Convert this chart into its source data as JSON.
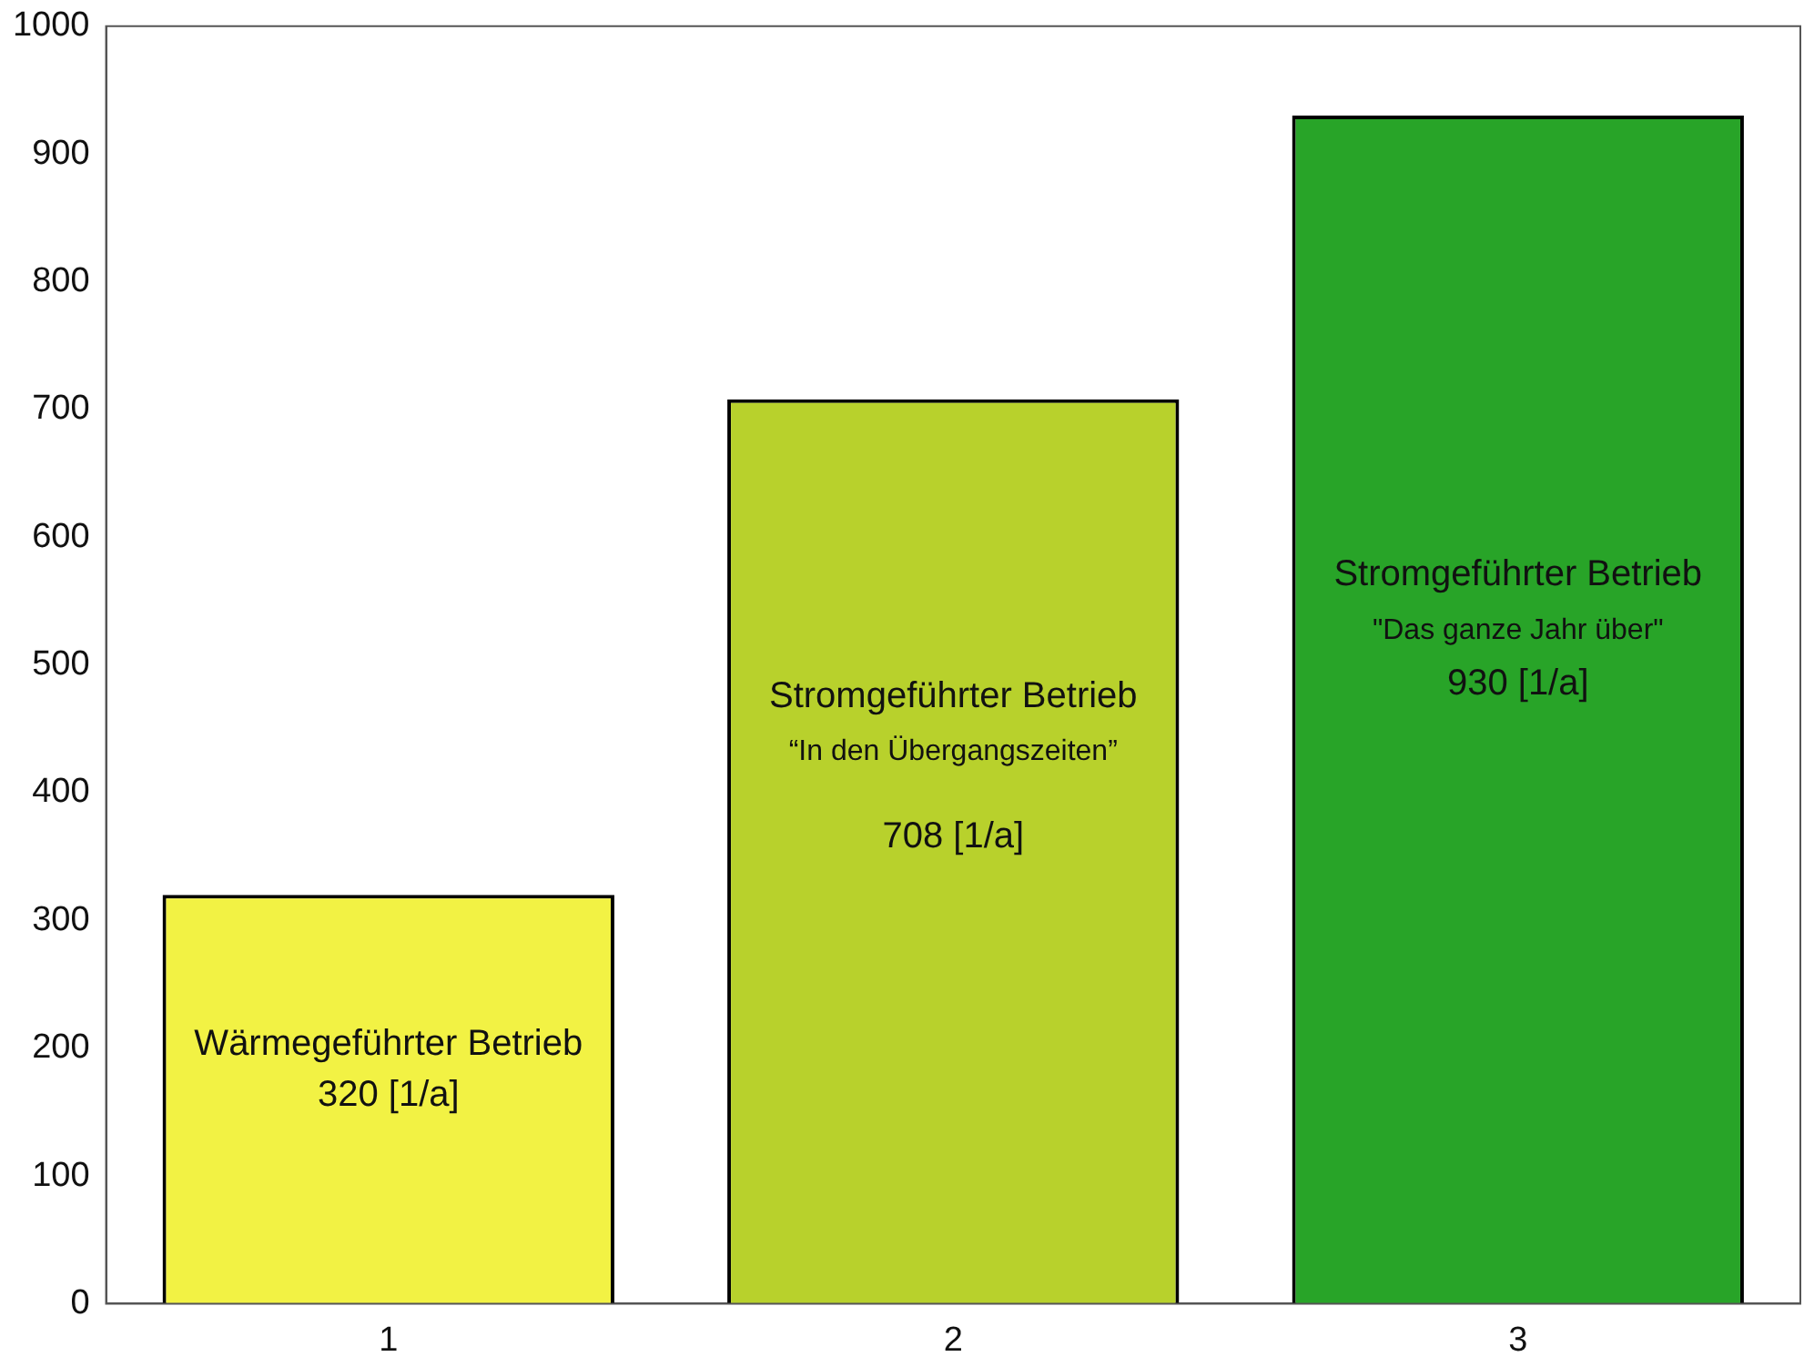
{
  "chart_data": {
    "type": "bar",
    "categories": [
      "1",
      "2",
      "3"
    ],
    "values": [
      320,
      708,
      930
    ],
    "colors": [
      "#f2f244",
      "#b8d12c",
      "#28a428"
    ],
    "ylim": [
      0,
      1000
    ],
    "yticks": [
      0,
      100,
      200,
      300,
      400,
      500,
      600,
      700,
      800,
      900,
      1000
    ],
    "grid": false,
    "legend": false,
    "annotations": [
      "Wärmegeführter Betrieb",
      "320 [1/a]",
      "Stromgeführter Betrieb",
      "“In den Übergangszeiten”",
      "708 [1/a]",
      "Stromgeführter Betrieb",
      "\"Das ganze Jahr über\"",
      "930 [1/a]"
    ]
  }
}
